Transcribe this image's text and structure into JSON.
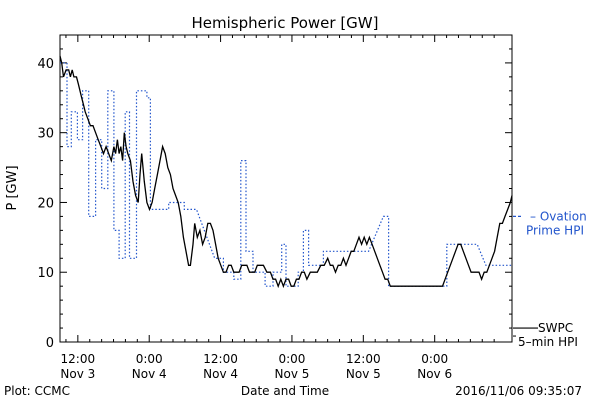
{
  "chart_data": {
    "type": "line",
    "title": "Hemispheric Power [GW]",
    "xlabel": "Date and Time",
    "ylabel": "P [GW]",
    "ylim": [
      0,
      44
    ],
    "yticks": [
      0,
      10,
      20,
      30,
      40
    ],
    "xlim_hours_from_nov3_00": [
      9,
      61
    ],
    "xticks": [
      {
        "hour": 12,
        "line1": "12:00",
        "line2": "Nov 3"
      },
      {
        "hour": 24,
        "line1": "0:00",
        "line2": "Nov 4"
      },
      {
        "hour": 36,
        "line1": "12:00",
        "line2": "Nov 4"
      },
      {
        "hour": 48,
        "line1": "0:00",
        "line2": "Nov 5"
      },
      {
        "hour": 60,
        "line1": "12:00",
        "line2": "Nov 5"
      },
      {
        "hour": 72,
        "line1": "0:00",
        "line2": "Nov 6"
      }
    ],
    "series": [
      {
        "name": "Ovation Prime HPI",
        "label_lines": [
          "– Ovation",
          "Prime HPI"
        ],
        "color": "#2255cc",
        "style": "dotted",
        "points": [
          [
            9.0,
            40
          ],
          [
            9.8,
            40
          ],
          [
            9.8,
            28
          ],
          [
            10.3,
            28
          ],
          [
            10.3,
            33
          ],
          [
            11.0,
            33
          ],
          [
            11.0,
            29
          ],
          [
            11.6,
            29
          ],
          [
            11.6,
            36
          ],
          [
            12.3,
            36
          ],
          [
            12.3,
            18
          ],
          [
            13.1,
            18
          ],
          [
            13.1,
            29
          ],
          [
            13.8,
            29
          ],
          [
            13.8,
            22
          ],
          [
            14.5,
            22
          ],
          [
            14.5,
            36
          ],
          [
            15.2,
            36
          ],
          [
            15.2,
            16
          ],
          [
            15.8,
            16
          ],
          [
            15.8,
            12
          ],
          [
            16.5,
            12
          ],
          [
            16.5,
            33
          ],
          [
            17.0,
            33
          ],
          [
            17.0,
            12
          ],
          [
            17.8,
            12
          ],
          [
            17.8,
            36
          ],
          [
            19.0,
            36
          ],
          [
            19.0,
            35
          ],
          [
            19.4,
            35
          ],
          [
            19.4,
            19
          ],
          [
            21.5,
            19
          ],
          [
            21.5,
            20
          ],
          [
            23.3,
            20
          ],
          [
            23.3,
            19
          ],
          [
            24.7,
            19
          ],
          [
            26.8,
            12
          ],
          [
            27.8,
            12
          ],
          [
            27.8,
            10
          ],
          [
            29.0,
            10
          ],
          [
            29.0,
            9
          ],
          [
            29.8,
            9
          ],
          [
            29.8,
            26
          ],
          [
            30.4,
            26
          ],
          [
            30.4,
            13
          ],
          [
            31.2,
            13
          ],
          [
            31.2,
            10
          ],
          [
            32.6,
            10
          ],
          [
            32.6,
            8
          ],
          [
            33.5,
            8
          ],
          [
            33.5,
            10
          ],
          [
            34.5,
            10
          ],
          [
            34.5,
            14
          ],
          [
            35.0,
            14
          ],
          [
            35.0,
            8
          ],
          [
            36.4,
            8
          ],
          [
            36.4,
            10
          ],
          [
            37.0,
            10
          ],
          [
            37.0,
            16
          ],
          [
            37.6,
            16
          ],
          [
            37.6,
            11
          ],
          [
            39.3,
            11
          ],
          [
            39.3,
            13
          ],
          [
            44.5,
            13
          ],
          [
            46.2,
            18
          ],
          [
            46.8,
            18
          ],
          [
            46.8,
            8
          ],
          [
            51.5,
            8
          ],
          [
            53.5,
            8
          ],
          [
            53.5,
            14
          ],
          [
            57.0,
            14
          ],
          [
            58.0,
            11
          ],
          [
            59.0,
            11
          ],
          [
            61.0,
            11
          ]
        ]
      },
      {
        "name": "SWPC 5-min HPI",
        "label_lines": [
          "SWPC",
          "5–min HPI"
        ],
        "color": "#000000",
        "style": "solid",
        "points": [
          [
            9.0,
            41
          ],
          [
            9.2,
            40
          ],
          [
            9.4,
            38
          ],
          [
            9.7,
            39
          ],
          [
            10.0,
            39
          ],
          [
            10.2,
            38
          ],
          [
            10.4,
            39
          ],
          [
            10.6,
            38
          ],
          [
            10.9,
            38
          ],
          [
            11.1,
            37
          ],
          [
            11.3,
            36
          ],
          [
            11.5,
            35
          ],
          [
            11.7,
            34
          ],
          [
            11.9,
            33
          ],
          [
            12.2,
            32
          ],
          [
            12.5,
            31
          ],
          [
            12.8,
            31
          ],
          [
            13.1,
            30
          ],
          [
            13.4,
            29
          ],
          [
            13.7,
            28
          ],
          [
            14.0,
            27
          ],
          [
            14.3,
            28
          ],
          [
            14.6,
            27
          ],
          [
            14.9,
            26
          ],
          [
            15.2,
            28
          ],
          [
            15.4,
            27
          ],
          [
            15.6,
            29
          ],
          [
            15.8,
            27
          ],
          [
            16.0,
            28
          ],
          [
            16.2,
            26
          ],
          [
            16.4,
            30
          ],
          [
            16.6,
            28
          ],
          [
            16.8,
            27
          ],
          [
            17.1,
            26
          ],
          [
            17.4,
            23
          ],
          [
            17.7,
            21
          ],
          [
            18.0,
            20
          ],
          [
            18.2,
            24
          ],
          [
            18.4,
            27
          ],
          [
            18.7,
            23
          ],
          [
            19.0,
            20
          ],
          [
            19.3,
            19
          ],
          [
            19.6,
            20
          ],
          [
            19.9,
            22
          ],
          [
            20.2,
            24
          ],
          [
            20.5,
            26
          ],
          [
            20.8,
            28
          ],
          [
            21.1,
            27
          ],
          [
            21.4,
            25
          ],
          [
            21.7,
            24
          ],
          [
            22.0,
            22
          ],
          [
            22.3,
            21
          ],
          [
            22.6,
            20
          ],
          [
            22.9,
            18
          ],
          [
            23.2,
            15
          ],
          [
            23.5,
            13
          ],
          [
            23.8,
            11
          ],
          [
            24.0,
            11
          ],
          [
            24.3,
            14
          ],
          [
            24.5,
            17
          ],
          [
            24.8,
            15
          ],
          [
            25.1,
            16
          ],
          [
            25.4,
            14
          ],
          [
            25.7,
            15
          ],
          [
            26.0,
            17
          ],
          [
            26.3,
            17
          ],
          [
            26.6,
            16
          ],
          [
            26.9,
            14
          ],
          [
            27.2,
            12
          ],
          [
            27.5,
            11
          ],
          [
            27.8,
            10
          ],
          [
            28.1,
            10
          ],
          [
            28.4,
            11
          ],
          [
            28.7,
            11
          ],
          [
            29.0,
            10
          ],
          [
            29.3,
            10
          ],
          [
            29.6,
            10
          ],
          [
            29.9,
            11
          ],
          [
            30.2,
            11
          ],
          [
            30.5,
            11
          ],
          [
            30.8,
            10
          ],
          [
            31.1,
            10
          ],
          [
            31.4,
            10
          ],
          [
            31.7,
            11
          ],
          [
            32.0,
            11
          ],
          [
            32.4,
            11
          ],
          [
            32.8,
            10
          ],
          [
            33.2,
            10
          ],
          [
            33.5,
            9
          ],
          [
            33.8,
            9
          ],
          [
            34.1,
            8
          ],
          [
            34.4,
            9
          ],
          [
            34.7,
            8
          ],
          [
            35.0,
            9
          ],
          [
            35.3,
            9
          ],
          [
            35.6,
            8
          ],
          [
            35.9,
            8
          ],
          [
            36.2,
            9
          ],
          [
            36.5,
            9
          ],
          [
            36.8,
            10
          ],
          [
            37.1,
            10
          ],
          [
            37.4,
            9
          ],
          [
            37.8,
            10
          ],
          [
            38.2,
            10
          ],
          [
            38.6,
            10
          ],
          [
            39.0,
            11
          ],
          [
            39.4,
            11
          ],
          [
            39.8,
            12
          ],
          [
            40.1,
            11
          ],
          [
            40.4,
            11
          ],
          [
            40.7,
            10
          ],
          [
            41.0,
            11
          ],
          [
            41.3,
            11
          ],
          [
            41.6,
            12
          ],
          [
            41.9,
            11
          ],
          [
            42.2,
            12
          ],
          [
            42.5,
            13
          ],
          [
            42.8,
            13
          ],
          [
            43.1,
            14
          ],
          [
            43.4,
            15
          ],
          [
            43.7,
            14
          ],
          [
            44.0,
            15
          ],
          [
            44.3,
            14
          ],
          [
            44.6,
            15
          ],
          [
            44.9,
            14
          ],
          [
            45.2,
            13
          ],
          [
            45.5,
            12
          ],
          [
            45.8,
            11
          ],
          [
            46.1,
            10
          ],
          [
            46.4,
            9
          ],
          [
            46.7,
            9
          ],
          [
            47.0,
            8
          ],
          [
            47.5,
            8
          ],
          [
            48.0,
            8
          ],
          [
            49.0,
            8
          ],
          [
            50.0,
            8
          ],
          [
            51.0,
            8
          ],
          [
            52.0,
            8
          ],
          [
            53.0,
            8
          ],
          [
            53.3,
            9
          ],
          [
            53.6,
            10
          ],
          [
            53.9,
            11
          ],
          [
            54.2,
            12
          ],
          [
            54.5,
            13
          ],
          [
            54.8,
            14
          ],
          [
            55.1,
            14
          ],
          [
            55.4,
            13
          ],
          [
            55.7,
            12
          ],
          [
            56.0,
            11
          ],
          [
            56.3,
            10
          ],
          [
            56.6,
            10
          ],
          [
            56.9,
            10
          ],
          [
            57.2,
            10
          ],
          [
            57.5,
            9
          ],
          [
            57.8,
            10
          ],
          [
            58.1,
            10
          ],
          [
            58.4,
            11
          ],
          [
            58.7,
            12
          ],
          [
            59.0,
            13
          ],
          [
            59.3,
            15
          ],
          [
            59.6,
            17
          ],
          [
            59.9,
            17
          ],
          [
            60.2,
            18
          ],
          [
            60.5,
            19
          ],
          [
            60.8,
            20
          ],
          [
            61.0,
            21
          ]
        ]
      }
    ],
    "series_ending_at_zero_annotation": "—"
  },
  "footer": {
    "plot_credit": "Plot: CCMC",
    "timestamp": "2016/11/06 09:35:07"
  }
}
